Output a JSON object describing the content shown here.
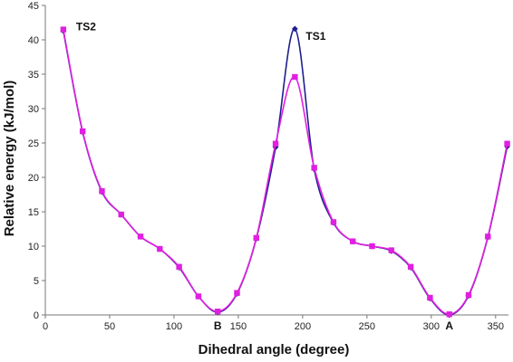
{
  "chart_data": {
    "type": "line",
    "title": "",
    "xlabel": "Dihedral angle (degree)",
    "ylabel": "Relative energy (kJ/mol)",
    "xlim": [
      0,
      360
    ],
    "ylim": [
      0,
      45
    ],
    "x_ticks": [
      "0",
      "50",
      "100",
      "150",
      "200",
      "250",
      "300",
      "350"
    ],
    "y_ticks": [
      "0",
      "5",
      "10",
      "15",
      "20",
      "25",
      "30",
      "35",
      "40",
      "45"
    ],
    "grid": false,
    "legend": "none",
    "series": [
      {
        "color": "#1f1f8f",
        "marker": "diamond",
        "points": [
          [
            14,
            41.3
          ],
          [
            29,
            26.6
          ],
          [
            44,
            17.9
          ],
          [
            59,
            14.6
          ],
          [
            74,
            11.4
          ],
          [
            89,
            9.6
          ],
          [
            104,
            6.9
          ],
          [
            119,
            2.7
          ],
          [
            134,
            0.4
          ],
          [
            149,
            3.1
          ],
          [
            164,
            11.1
          ],
          [
            179,
            24.4
          ],
          [
            194,
            41.6
          ],
          [
            209,
            21.2
          ],
          [
            224,
            13.4
          ],
          [
            239,
            10.7
          ],
          [
            254,
            10.0
          ],
          [
            269,
            9.3
          ],
          [
            284,
            6.9
          ],
          [
            299,
            2.4
          ],
          [
            314,
            0.0
          ],
          [
            329,
            2.8
          ],
          [
            344,
            11.3
          ],
          [
            359,
            24.5
          ]
        ]
      },
      {
        "color": "#e020e0",
        "marker": "square",
        "points": [
          [
            14,
            41.5
          ],
          [
            29,
            26.7
          ],
          [
            44,
            18.0
          ],
          [
            59,
            14.6
          ],
          [
            74,
            11.4
          ],
          [
            89,
            9.6
          ],
          [
            104,
            7.0
          ],
          [
            119,
            2.7
          ],
          [
            134,
            0.5
          ],
          [
            149,
            3.2
          ],
          [
            164,
            11.2
          ],
          [
            179,
            24.9
          ],
          [
            194,
            34.6
          ],
          [
            209,
            21.4
          ],
          [
            224,
            13.5
          ],
          [
            239,
            10.7
          ],
          [
            254,
            10.0
          ],
          [
            269,
            9.4
          ],
          [
            284,
            7.0
          ],
          [
            299,
            2.5
          ],
          [
            314,
            0.1
          ],
          [
            329,
            2.9
          ],
          [
            344,
            11.4
          ],
          [
            359,
            24.9
          ]
        ]
      }
    ],
    "annotations": [
      {
        "text": "TS2",
        "x": 14,
        "y": 41.5
      },
      {
        "text": "TS1",
        "x": 194,
        "y": 41.6
      },
      {
        "text": "B",
        "x": 134,
        "y": 0
      },
      {
        "text": "A",
        "x": 314,
        "y": 0
      }
    ]
  }
}
